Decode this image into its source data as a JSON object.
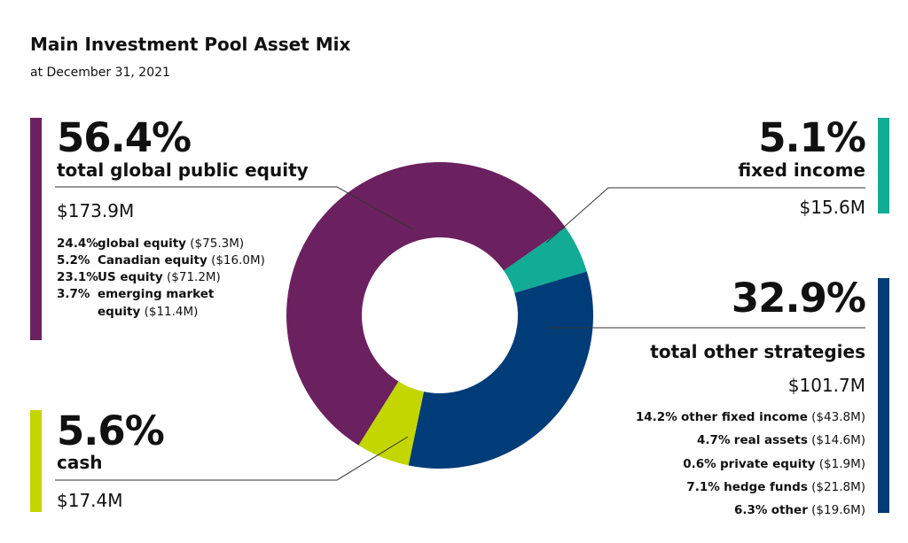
{
  "title": "Main Investment Pool Asset Mix",
  "subtitle": "at December 31, 2021",
  "colors": {
    "equity": "#6b2160",
    "fixed_income": "#12ab96",
    "other": "#003c78",
    "cash": "#c3d600",
    "callout_line": "#333333"
  },
  "equity": {
    "pct": "56.4%",
    "label": "total global public equity",
    "amount": "$173.9M",
    "breakdown": [
      {
        "pct": "24.4%",
        "name": "global equity",
        "amount": "($75.3M)"
      },
      {
        "pct": "5.2%",
        "name": "Canadian equity",
        "amount": "($16.0M)"
      },
      {
        "pct": "23.1%",
        "name": "US equity",
        "amount": "($71.2M)"
      },
      {
        "pct": "3.7%",
        "name": "emerging market equity",
        "amount": "($11.4M)"
      }
    ]
  },
  "fixed_income": {
    "pct": "5.1%",
    "label": "fixed income",
    "amount": "$15.6M"
  },
  "other": {
    "pct": "32.9%",
    "label": "total other strategies",
    "amount": "$101.7M",
    "breakdown": [
      {
        "pct": "14.2%",
        "name": "other fixed income",
        "amount": "($43.8M)"
      },
      {
        "pct": "4.7%",
        "name": "real assets",
        "amount": "($14.6M)"
      },
      {
        "pct": "0.6%",
        "name": "private equity",
        "amount": "($1.9M)"
      },
      {
        "pct": "7.1%",
        "name": "hedge funds",
        "amount": "($21.8M)"
      },
      {
        "pct": "6.3%",
        "name": "other",
        "amount": "($19.6M)"
      }
    ]
  },
  "cash": {
    "pct": "5.6%",
    "label": "cash",
    "amount": "$17.4M"
  },
  "chart_data": {
    "type": "pie",
    "donut": true,
    "title": "Main Investment Pool Asset Mix",
    "subtitle": "at December 31, 2021",
    "categories": [
      "total global public equity",
      "fixed income",
      "total other strategies",
      "cash"
    ],
    "values": [
      56.4,
      5.1,
      32.9,
      5.6
    ],
    "amounts_millions": [
      173.9,
      15.6,
      101.7,
      17.4
    ],
    "colors": [
      "#6b2160",
      "#12ab96",
      "#003c78",
      "#c3d600"
    ]
  }
}
